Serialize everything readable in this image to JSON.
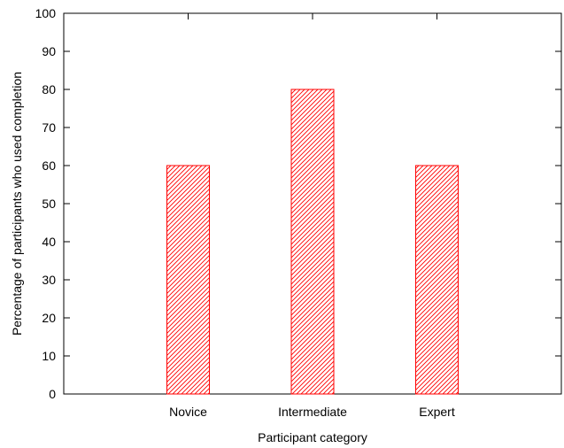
{
  "chart_data": {
    "type": "bar",
    "categories": [
      "Novice",
      "Intermediate",
      "Expert"
    ],
    "values": [
      60,
      80,
      60
    ],
    "title": "",
    "xlabel": "Participant category",
    "ylabel": "Percentage of participants who used completion",
    "ylim": [
      0,
      100
    ],
    "yticks": [
      0,
      10,
      20,
      30,
      40,
      50,
      60,
      70,
      80,
      90,
      100
    ],
    "grid": false,
    "bar_style": "diagonal-hatch",
    "colors": {
      "bar": "#ff0000",
      "axis": "#000000",
      "background": "#ffffff"
    }
  }
}
